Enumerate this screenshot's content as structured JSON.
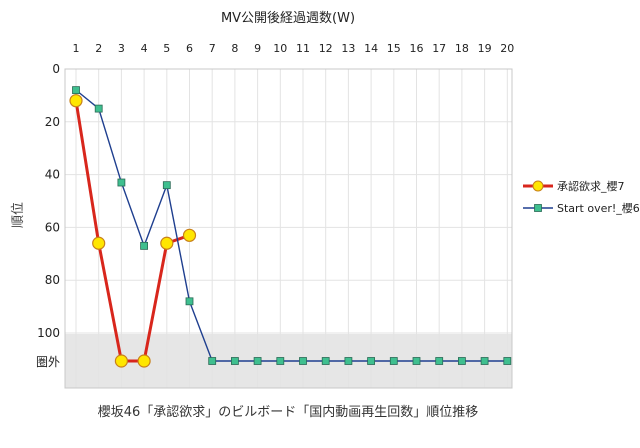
{
  "chart_data": {
    "type": "line",
    "title": "MV公開後経過週数(W)",
    "ylabel": "順位",
    "caption": "櫻坂46「承認欲求」のビルボード「国内動画再生回数」順位推移",
    "x_ticks": [
      "1",
      "2",
      "3",
      "4",
      "5",
      "6",
      "7",
      "8",
      "9",
      "10",
      "11",
      "12",
      "13",
      "14",
      "15",
      "16",
      "17",
      "18",
      "19",
      "20"
    ],
    "y_ticks": [
      "0",
      "20",
      "40",
      "60",
      "80",
      "100"
    ],
    "y_out_label": "圏外",
    "ylim": [
      0,
      100
    ],
    "y_inverted": true,
    "out_of_chart_band": true,
    "grid": true,
    "legend_position": "right",
    "series": [
      {
        "name": "承認欲求_櫻7",
        "color": "#d8261c",
        "marker": "circle",
        "marker_fill": "#ffe600",
        "points": [
          {
            "x": 1,
            "y": 12
          },
          {
            "x": 2,
            "y": 66
          },
          {
            "x": 3,
            "y": "圏外"
          },
          {
            "x": 4,
            "y": "圏外"
          },
          {
            "x": 5,
            "y": 66
          },
          {
            "x": 6,
            "y": 63
          }
        ]
      },
      {
        "name": "Start over!_櫻6",
        "color": "#1f3f8f",
        "marker": "square",
        "marker_fill": "#3fbf8f",
        "points": [
          {
            "x": 1,
            "y": 8
          },
          {
            "x": 2,
            "y": 15
          },
          {
            "x": 3,
            "y": 43
          },
          {
            "x": 4,
            "y": 67
          },
          {
            "x": 5,
            "y": 44
          },
          {
            "x": 6,
            "y": 88
          },
          {
            "x": 7,
            "y": "圏外"
          },
          {
            "x": 8,
            "y": "圏外"
          },
          {
            "x": 9,
            "y": "圏外"
          },
          {
            "x": 10,
            "y": "圏外"
          },
          {
            "x": 11,
            "y": "圏外"
          },
          {
            "x": 12,
            "y": "圏外"
          },
          {
            "x": 13,
            "y": "圏外"
          },
          {
            "x": 14,
            "y": "圏外"
          },
          {
            "x": 15,
            "y": "圏外"
          },
          {
            "x": 16,
            "y": "圏外"
          },
          {
            "x": 17,
            "y": "圏外"
          },
          {
            "x": 18,
            "y": "圏外"
          },
          {
            "x": 19,
            "y": "圏外"
          },
          {
            "x": 20,
            "y": "圏外"
          }
        ]
      }
    ]
  }
}
